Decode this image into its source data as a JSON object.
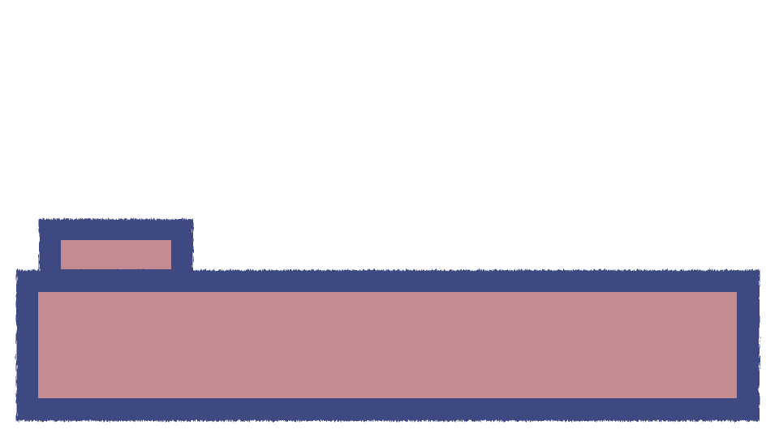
{
  "colors": {
    "background": "#ffffff",
    "fill": "#c48c90",
    "stroke": "#3d4a80"
  },
  "shapes": [
    {
      "name": "small-tab-box",
      "kind": "rectangle"
    },
    {
      "name": "large-panel-box",
      "kind": "rectangle"
    }
  ]
}
